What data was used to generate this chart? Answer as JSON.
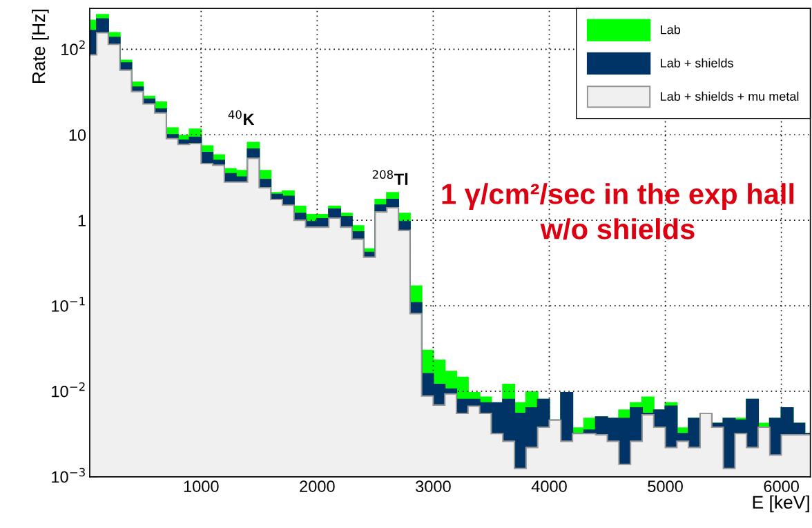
{
  "chart_data": {
    "type": "histogram",
    "xlabel": "E [keV]",
    "ylabel": "Rate [Hz]",
    "log": "y",
    "grid": true,
    "legend": "top right",
    "bins": [
      0,
      100,
      200,
      300,
      400,
      500,
      600,
      700,
      800,
      900,
      1000,
      1100,
      1200,
      1300,
      1400,
      1500,
      1600,
      1700,
      1800,
      1900,
      2000,
      2100,
      2200,
      2300,
      2400,
      2500,
      2600,
      2700,
      2800,
      2900,
      3000,
      3100,
      3200,
      3300,
      3400,
      3500,
      3600,
      3700,
      3800,
      3900,
      4000,
      4100,
      4200,
      4300,
      4400,
      4500,
      4600,
      4700,
      4800,
      4900,
      5000,
      5100,
      5200,
      5300,
      5400,
      5500,
      5600,
      5700,
      5800,
      5900,
      6000,
      6100,
      6200,
      6300
    ],
    "series": [
      {
        "name": "Lab",
        "color": "#00ff00",
        "values": [
          218,
          253,
          156,
          74,
          41,
          28,
          24,
          12,
          9.8,
          11.6,
          7.4,
          5.8,
          4.0,
          3.8,
          8.1,
          3.8,
          2.1,
          2.2,
          1.45,
          1.16,
          1.16,
          1.45,
          1.2,
          0.86,
          0.46,
          1.75,
          2.1,
          1.2,
          0.17,
          0.03,
          0.023,
          0.017,
          0.0145,
          0.0096,
          0.0085,
          null,
          0.012,
          0.0073,
          0.0098,
          0.008,
          0.0046,
          0.0096,
          0.0037,
          0.0048,
          0.005,
          0.0048,
          0.006,
          0.0073,
          0.0085,
          0.006,
          0.0073,
          0.0037,
          0.0048,
          0.0055,
          0.0042,
          0.0048,
          0.0048,
          0.008,
          0.0042,
          0.0048,
          0.0064,
          0.0042,
          0.0032
        ]
      },
      {
        "name": "Lab + shields",
        "color": "#003366",
        "values": [
          165,
          226,
          137,
          69,
          36,
          26,
          20,
          10,
          8.6,
          9.3,
          6.2,
          5.0,
          3.5,
          3.2,
          6.8,
          3.0,
          2.0,
          1.9,
          1.2,
          0.96,
          1.04,
          1.35,
          1.1,
          0.73,
          0.42,
          1.5,
          1.75,
          0.96,
          0.108,
          0.016,
          0.012,
          0.0106,
          0.008,
          0.008,
          0.0073,
          0.0073,
          0.008,
          0.0055,
          0.0064,
          0.008,
          0.0046,
          0.0096,
          0.0032,
          0.0035,
          0.005,
          0.0048,
          0.0048,
          0.0064,
          0.0055,
          0.006,
          0.0067,
          0.0032,
          0.0048,
          0.0055,
          0.0042,
          0.0048,
          0.0046,
          0.008,
          0.0032,
          0.0048,
          0.0064,
          0.0042,
          0.0032
        ]
      },
      {
        "name": "Lab + shields + mu metal",
        "color": "#f0f0f0",
        "values": [
          86,
          156,
          114,
          57,
          32,
          23,
          18,
          9.0,
          7.7,
          7.9,
          4.6,
          4.4,
          2.8,
          2.8,
          5.3,
          2.4,
          1.75,
          1.5,
          1.0,
          0.83,
          0.83,
          1.06,
          0.83,
          0.6,
          0.37,
          1.25,
          1.4,
          0.76,
          0.081,
          0.0088,
          0.0069,
          0.0093,
          0.0055,
          0.0067,
          0.0055,
          0.0032,
          0.0026,
          0.00125,
          0.0022,
          0.0038,
          0.0046,
          0.0026,
          0.0032,
          0.0032,
          0.0031,
          0.0026,
          0.0014,
          0.0026,
          0.0053,
          0.0038,
          0.0022,
          0.0026,
          0.0022,
          0.0055,
          0.0038,
          0.00125,
          0.0032,
          0.0022,
          0.0038,
          0.0018,
          0.0031,
          0.0031,
          0.0031
        ]
      }
    ],
    "xlim": [
      40,
      6250
    ],
    "xticks": [
      1000,
      2000,
      3000,
      4000,
      5000,
      6000
    ],
    "ylim": [
      0.001,
      300
    ],
    "yticks": [
      {
        "value": 0.001,
        "label": "10$^{−3}$"
      },
      {
        "value": 0.01,
        "label": "10$^{−2}$"
      },
      {
        "value": 0.1,
        "label": "10$^{−1}$"
      },
      1,
      10,
      {
        "value": 100,
        "label": "10$^{2}$"
      }
    ],
    "annotations": [
      "$^{40}$K",
      "$^{208}$Tl",
      "1 γ/cm²/sec in the exp hall w/o shields"
    ]
  }
}
